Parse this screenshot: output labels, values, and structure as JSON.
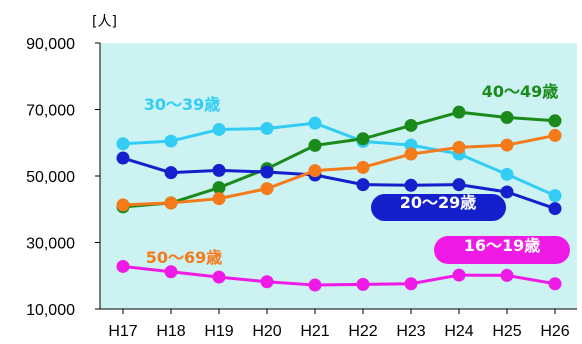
{
  "chart_data": {
    "type": "line",
    "unit_label": "[人]",
    "categories": [
      "H17",
      "H18",
      "H19",
      "H20",
      "H21",
      "H22",
      "H23",
      "H24",
      "H25",
      "H26"
    ],
    "ylim": [
      10000,
      90000
    ],
    "yticks": [
      10000,
      30000,
      50000,
      70000,
      90000
    ],
    "ytick_labels": [
      "10,000",
      "30,000",
      "50,000",
      "70,000",
      "90,000"
    ],
    "grid": false,
    "plot_background": "#ccf2f2",
    "series": [
      {
        "name": "30〜39歳",
        "color": "#33ccf5",
        "label_style": "text",
        "values": [
          59700,
          60500,
          64000,
          64300,
          65900,
          60400,
          59300,
          56600,
          50500,
          44100
        ]
      },
      {
        "name": "40〜49歳",
        "color": "#1a8a1a",
        "label_style": "text",
        "values": [
          40700,
          41900,
          46500,
          52200,
          59200,
          61200,
          65200,
          69200,
          67600,
          66600
        ]
      },
      {
        "name": "20〜29歳",
        "color": "#1420cc",
        "label_style": "pill",
        "values": [
          55400,
          51000,
          51700,
          51200,
          50300,
          47400,
          47200,
          47400,
          45200,
          40200
        ]
      },
      {
        "name": "50〜69歳",
        "color": "#f57a1a",
        "label_style": "text",
        "values": [
          41300,
          41900,
          43200,
          46200,
          51600,
          52600,
          56600,
          58600,
          59300,
          62200
        ]
      },
      {
        "name": "16〜19歳",
        "color": "#f01ae6",
        "label_style": "pill",
        "values": [
          22800,
          21200,
          19600,
          18200,
          17200,
          17400,
          17600,
          20200,
          20100,
          17600
        ]
      }
    ]
  }
}
